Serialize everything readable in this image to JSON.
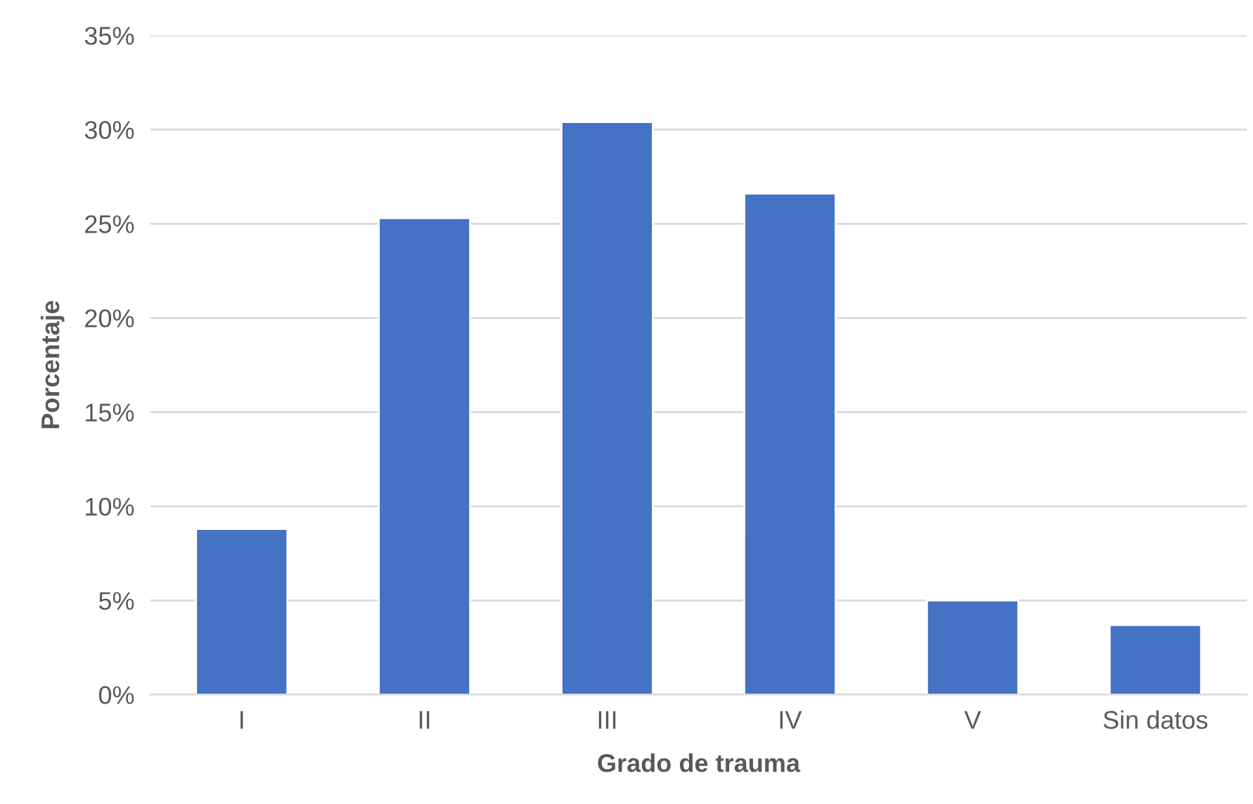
{
  "chart_data": {
    "type": "bar",
    "xlabel": "Grado de trauma",
    "ylabel": "Porcentaje",
    "categories": [
      "I",
      "II",
      "III",
      "IV",
      "V",
      "Sin datos"
    ],
    "values": [
      8.8,
      25.3,
      30.4,
      26.6,
      5.0,
      3.7
    ],
    "color": "#4472c4",
    "ylim": [
      0,
      35
    ],
    "yticks": [
      {
        "value": 0,
        "label": "0%"
      },
      {
        "value": 5,
        "label": "5%"
      },
      {
        "value": 10,
        "label": "10%"
      },
      {
        "value": 15,
        "label": "15%"
      },
      {
        "value": 20,
        "label": "20%"
      },
      {
        "value": 25,
        "label": "25%"
      },
      {
        "value": 30,
        "label": "30%"
      },
      {
        "value": 35,
        "label": "35%"
      }
    ],
    "grid": "y",
    "legend": false
  }
}
